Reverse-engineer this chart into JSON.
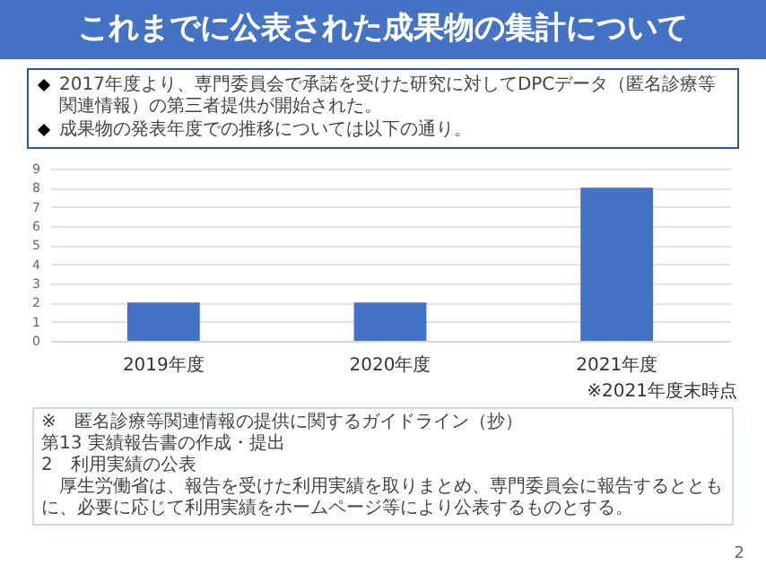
{
  "chart_data": {
    "type": "bar",
    "title": "これまでに公表された成果物の集計について",
    "categories": [
      "2019年度",
      "2020年度",
      "2021年度"
    ],
    "values": [
      2,
      2,
      8
    ],
    "color": "#4472c4",
    "ylim": [
      0,
      9
    ],
    "yticks": [
      0,
      1,
      2,
      3,
      4,
      5,
      6,
      7,
      8,
      9
    ],
    "grid": "y",
    "annotations": [
      "2017年度より、専門委員会で承諾を受けた研究に対してDPCデータ（匿名診療等関連情報）の第三者提供が開始された。",
      "成果物の発表年度での推移については以下の通り。",
      "※2021年度末時点",
      "※　匿名診療等関連情報の提供に関するガイドライン（抄）",
      "第13 実績報告書の作成・提出",
      "2　利用実績の公表",
      "　厚生労働省は、報告を受けた利用実績を取りまとめ、専門委員会に報告するとともに、必要に応じて利用実績をホームページ等により公表するものとする。",
      "2"
    ]
  }
}
